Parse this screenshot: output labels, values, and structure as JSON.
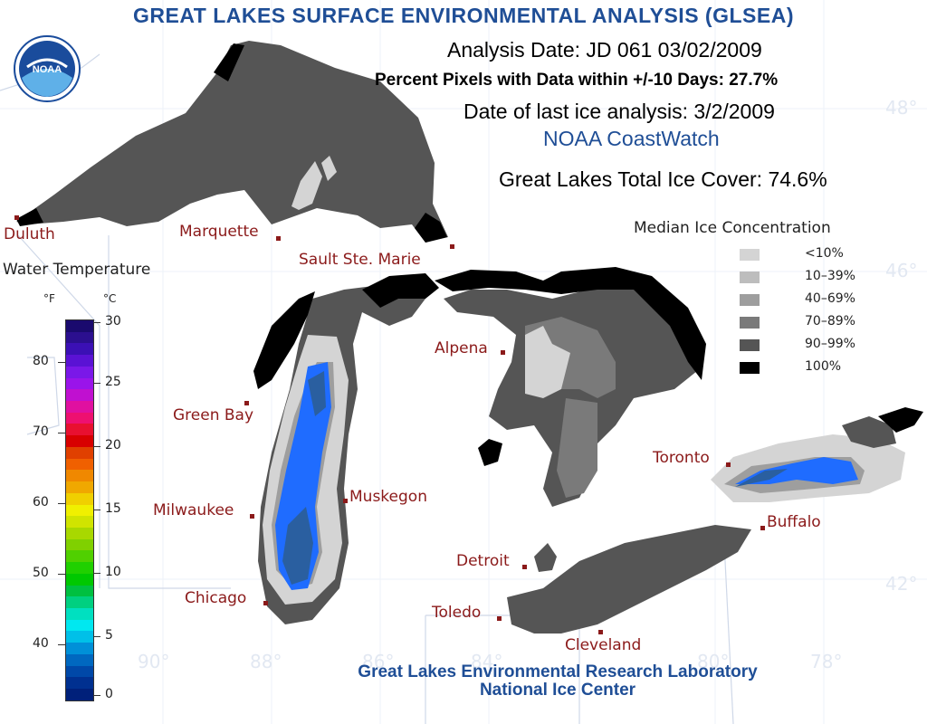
{
  "header": {
    "title": "GREAT LAKES SURFACE ENVIRONMENTAL ANALYSIS (GLSEA)",
    "analysis_date": "Analysis Date:  JD 061 03/02/2009",
    "percent_pixels": "Percent Pixels with Data within +/-10 Days:  27.7%",
    "last_ice_analysis": "Date of last ice analysis: 3/2/2009",
    "source": "NOAA CoastWatch",
    "total_ice_cover": "Great Lakes Total Ice Cover:  74.6%"
  },
  "logo": {
    "text": "NOAA",
    "icon": "noaa-logo-icon"
  },
  "ice_legend": {
    "title": "Median Ice Concentration",
    "items": [
      {
        "label": "<10%",
        "color": "#d4d4d4"
      },
      {
        "label": "10–39%",
        "color": "#bdbdbd"
      },
      {
        "label": "40–69%",
        "color": "#9e9e9e"
      },
      {
        "label": "70–89%",
        "color": "#7a7a7a"
      },
      {
        "label": "90–99%",
        "color": "#555555"
      },
      {
        "label": "100%",
        "color": "#000000"
      }
    ]
  },
  "water_temp": {
    "title": "Water Temperature",
    "unit_f": "°F",
    "unit_c": "°C",
    "f_ticks": [
      "80",
      "70",
      "60",
      "50",
      "40"
    ],
    "c_ticks": [
      "30",
      "25",
      "20",
      "15",
      "10",
      "5",
      "0"
    ],
    "colors": [
      "#1a0a6e",
      "#2b0f8f",
      "#3b10b5",
      "#5a12d4",
      "#7a18e8",
      "#9a14ea",
      "#c010d0",
      "#e010a0",
      "#ee1070",
      "#e81030",
      "#d80000",
      "#e04000",
      "#f06000",
      "#f08800",
      "#f0a800",
      "#f0d000",
      "#f0f000",
      "#d0e400",
      "#a8d800",
      "#80d000",
      "#50d000",
      "#20d000",
      "#00c800",
      "#00c040",
      "#00d080",
      "#00e0c0",
      "#00e8f0",
      "#00c0e8",
      "#0090d8",
      "#0068c0",
      "#0048a8",
      "#003090",
      "#00207a"
    ]
  },
  "cities": [
    {
      "name": "Duluth"
    },
    {
      "name": "Marquette"
    },
    {
      "name": "Sault Ste. Marie"
    },
    {
      "name": "Green Bay"
    },
    {
      "name": "Alpena"
    },
    {
      "name": "Milwaukee"
    },
    {
      "name": "Muskegon"
    },
    {
      "name": "Toronto"
    },
    {
      "name": "Buffalo"
    },
    {
      "name": "Chicago"
    },
    {
      "name": "Detroit"
    },
    {
      "name": "Toledo"
    },
    {
      "name": "Cleveland"
    }
  ],
  "graticule_labels": {
    "lat": [
      "48°",
      "46°",
      "42°"
    ],
    "lon": [
      "90°",
      "88°",
      "86°",
      "84°",
      "80°",
      "78°"
    ]
  },
  "credits": {
    "line1": "Great Lakes Environmental Research Laboratory",
    "line2": "National Ice Center"
  }
}
